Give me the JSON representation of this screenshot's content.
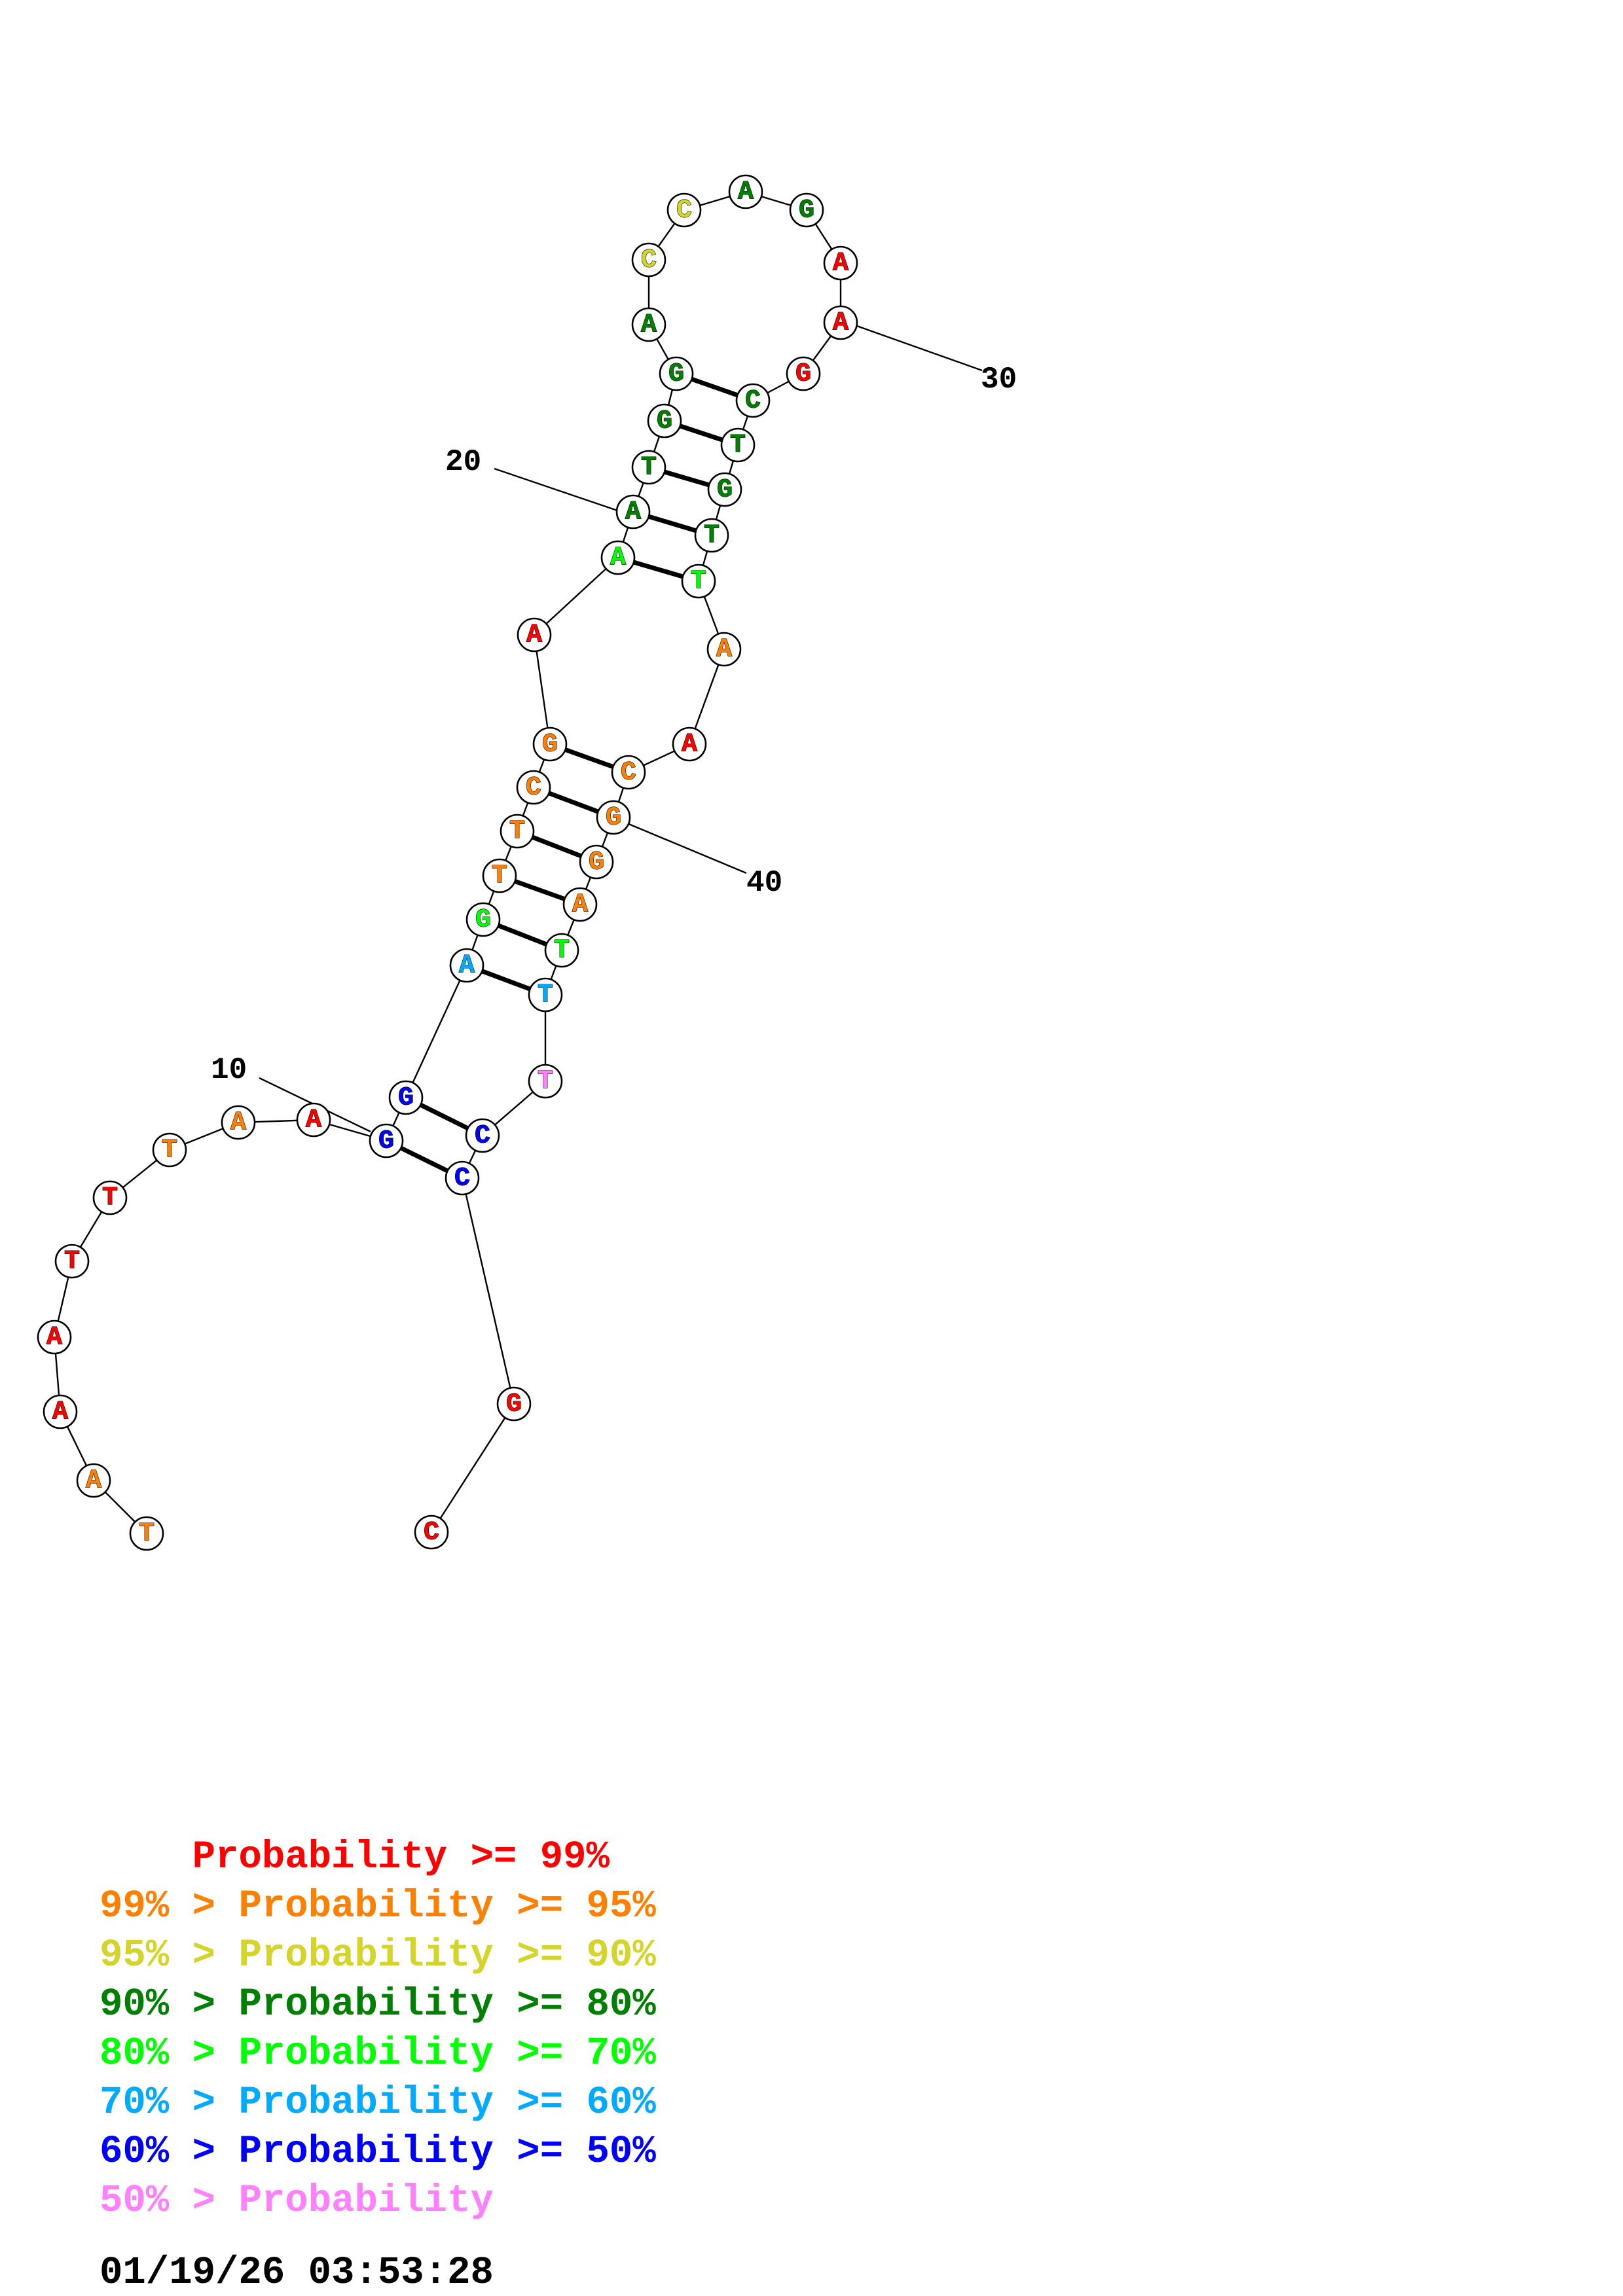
{
  "colors": {
    "p99": "#ff0000",
    "p95": "#ff8000",
    "p90": "#d4d42a",
    "p80": "#008000",
    "p70": "#00ff00",
    "p60": "#00aaff",
    "p50": "#0000ff",
    "plow": "#ff80ff"
  },
  "diagram": {
    "sequence": [
      {
        "n": 1,
        "base": "T",
        "prob": "p95"
      },
      {
        "n": 2,
        "base": "A",
        "prob": "p95"
      },
      {
        "n": 3,
        "base": "A",
        "prob": "p99"
      },
      {
        "n": 4,
        "base": "A",
        "prob": "p99"
      },
      {
        "n": 5,
        "base": "T",
        "prob": "p99"
      },
      {
        "n": 6,
        "base": "T",
        "prob": "p99"
      },
      {
        "n": 7,
        "base": "T",
        "prob": "p95"
      },
      {
        "n": 8,
        "base": "A",
        "prob": "p95"
      },
      {
        "n": 9,
        "base": "A",
        "prob": "p99"
      },
      {
        "n": 10,
        "base": "G",
        "prob": "p50"
      },
      {
        "n": 11,
        "base": "G",
        "prob": "p50"
      },
      {
        "n": 12,
        "base": "A",
        "prob": "p60"
      },
      {
        "n": 13,
        "base": "G",
        "prob": "p70"
      },
      {
        "n": 14,
        "base": "T",
        "prob": "p95"
      },
      {
        "n": 15,
        "base": "T",
        "prob": "p95"
      },
      {
        "n": 16,
        "base": "C",
        "prob": "p95"
      },
      {
        "n": 17,
        "base": "G",
        "prob": "p95"
      },
      {
        "n": 18,
        "base": "A",
        "prob": "p99"
      },
      {
        "n": 19,
        "base": "A",
        "prob": "p70"
      },
      {
        "n": 20,
        "base": "A",
        "prob": "p80"
      },
      {
        "n": 21,
        "base": "T",
        "prob": "p80"
      },
      {
        "n": 22,
        "base": "G",
        "prob": "p80"
      },
      {
        "n": 23,
        "base": "G",
        "prob": "p80"
      },
      {
        "n": 24,
        "base": "A",
        "prob": "p80"
      },
      {
        "n": 25,
        "base": "C",
        "prob": "p90"
      },
      {
        "n": 26,
        "base": "C",
        "prob": "p90"
      },
      {
        "n": 27,
        "base": "A",
        "prob": "p80"
      },
      {
        "n": 28,
        "base": "G",
        "prob": "p80"
      },
      {
        "n": 29,
        "base": "A",
        "prob": "p99"
      },
      {
        "n": 30,
        "base": "A",
        "prob": "p99"
      },
      {
        "n": 31,
        "base": "G",
        "prob": "p99"
      },
      {
        "n": 32,
        "base": "C",
        "prob": "p80"
      },
      {
        "n": 33,
        "base": "T",
        "prob": "p80"
      },
      {
        "n": 34,
        "base": "G",
        "prob": "p80"
      },
      {
        "n": 35,
        "base": "T",
        "prob": "p80"
      },
      {
        "n": 36,
        "base": "T",
        "prob": "p70"
      },
      {
        "n": 37,
        "base": "A",
        "prob": "p95"
      },
      {
        "n": 38,
        "base": "A",
        "prob": "p99"
      },
      {
        "n": 39,
        "base": "C",
        "prob": "p95"
      },
      {
        "n": 40,
        "base": "G",
        "prob": "p95"
      },
      {
        "n": 41,
        "base": "G",
        "prob": "p95"
      },
      {
        "n": 42,
        "base": "A",
        "prob": "p95"
      },
      {
        "n": 43,
        "base": "T",
        "prob": "p70"
      },
      {
        "n": 44,
        "base": "T",
        "prob": "p60"
      },
      {
        "n": 45,
        "base": "T",
        "prob": "plow"
      },
      {
        "n": 46,
        "base": "C",
        "prob": "p50"
      },
      {
        "n": 47,
        "base": "C",
        "prob": "p50"
      },
      {
        "n": 48,
        "base": "G",
        "prob": "p99"
      },
      {
        "n": 49,
        "base": "C",
        "prob": "p99"
      }
    ],
    "pairs": [
      [
        10,
        47
      ],
      [
        11,
        46
      ],
      [
        12,
        44
      ],
      [
        13,
        43
      ],
      [
        14,
        42
      ],
      [
        15,
        41
      ],
      [
        16,
        40
      ],
      [
        17,
        39
      ],
      [
        19,
        36
      ],
      [
        20,
        35
      ],
      [
        21,
        34
      ],
      [
        22,
        33
      ],
      [
        23,
        32
      ]
    ],
    "tick_labels": [
      {
        "n": 10,
        "text": "10"
      },
      {
        "n": 20,
        "text": "20"
      },
      {
        "n": 30,
        "text": "30"
      },
      {
        "n": 40,
        "text": "40"
      }
    ]
  },
  "legend": [
    {
      "prefix": "    ",
      "text": "Probability >= 99%",
      "color": "p99"
    },
    {
      "prefix": "99% > ",
      "text": "Probability >= 95%",
      "color": "p95"
    },
    {
      "prefix": "95% > ",
      "text": "Probability >= 90%",
      "color": "p90"
    },
    {
      "prefix": "90% > ",
      "text": "Probability >= 80%",
      "color": "p80"
    },
    {
      "prefix": "80% > ",
      "text": "Probability >= 70%",
      "color": "p70"
    },
    {
      "prefix": "70% > ",
      "text": "Probability >= 60%",
      "color": "p60"
    },
    {
      "prefix": "60% > ",
      "text": "Probability >= 50%",
      "color": "p50"
    },
    {
      "prefix": "50% > ",
      "text": "Probability",
      "color": "plow"
    }
  ],
  "timestamp": "01/19/26 03:53:28"
}
